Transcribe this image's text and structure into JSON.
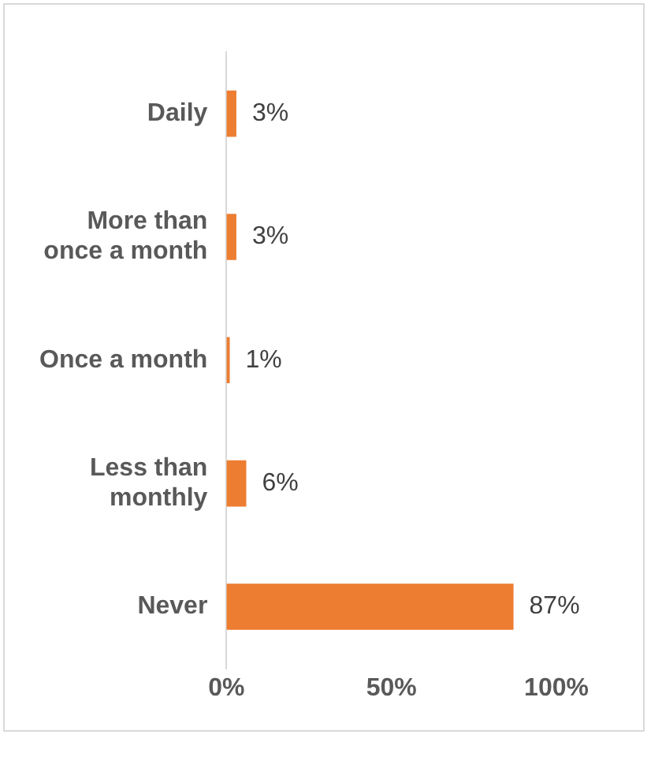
{
  "chart_data": {
    "type": "bar",
    "orientation": "horizontal",
    "categories": [
      "Daily",
      "More than once a month",
      "Once a month",
      "Less than monthly",
      "Never"
    ],
    "values": [
      3,
      3,
      1,
      6,
      87
    ],
    "color": "#ed7d31",
    "value_labels": [
      "3%",
      "3%",
      "1%",
      "6%",
      "87%"
    ],
    "xlim": [
      0,
      100
    ],
    "xticks": [
      {
        "value": 0,
        "label": "0%"
      },
      {
        "value": 50,
        "label": "50%"
      },
      {
        "value": 100,
        "label": "100%"
      }
    ],
    "grid": false,
    "legend": false
  }
}
